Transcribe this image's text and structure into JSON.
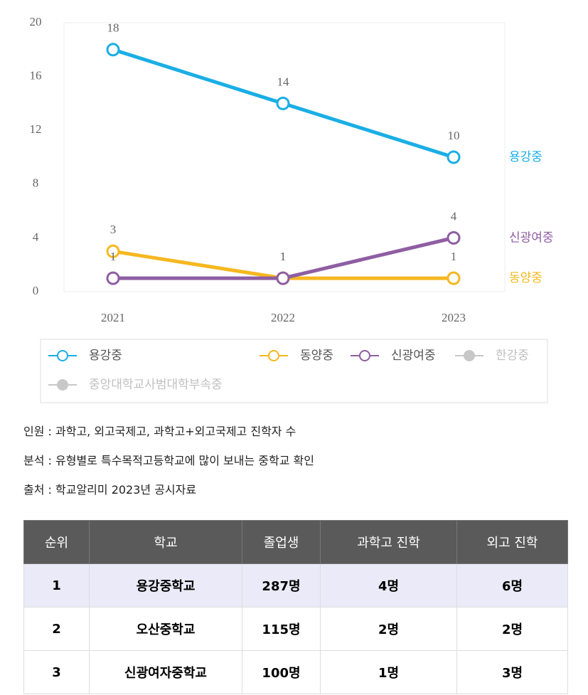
{
  "chart_data": {
    "type": "line",
    "categories": [
      "2021",
      "2022",
      "2023"
    ],
    "series": [
      {
        "name": "용강중",
        "color": "#1aaee5",
        "values": [
          18,
          14,
          10
        ],
        "visible": true
      },
      {
        "name": "동양중",
        "color": "#f5b820",
        "values": [
          3,
          1,
          1
        ],
        "visible": true
      },
      {
        "name": "신광여중",
        "color": "#8e5ea2",
        "values": [
          1,
          1,
          4
        ],
        "visible": true
      },
      {
        "name": "한강중",
        "color": "#c8c8c8",
        "values": [
          null,
          null,
          null
        ],
        "visible": false
      },
      {
        "name": "중앙대학교사범대학부속중",
        "color": "#c8c8c8",
        "values": [
          null,
          null,
          null
        ],
        "visible": false
      }
    ],
    "ylim": [
      0,
      20
    ],
    "yticks": [
      0,
      4,
      8,
      12,
      16,
      20
    ],
    "grid": false,
    "legend": "bottom"
  },
  "notes": [
    "인원 : 과학고, 외고국제고, 과학고+외고국제고 진학자 수",
    "분석 : 유형별로 특수목적고등학교에 많이 보내는 중학교 확인",
    "출처 : 학교알리미 2023년 공시자료"
  ],
  "table": {
    "header": [
      "순위",
      "학교",
      "졸업생",
      "과학고 진학",
      "외고 진학"
    ],
    "rows": [
      [
        "1",
        "용강중학교",
        "287명",
        "4명",
        "6명"
      ],
      [
        "2",
        "오산중학교",
        "115명",
        "2명",
        "2명"
      ],
      [
        "3",
        "신광여자중학교",
        "100명",
        "1명",
        "3명"
      ]
    ]
  }
}
